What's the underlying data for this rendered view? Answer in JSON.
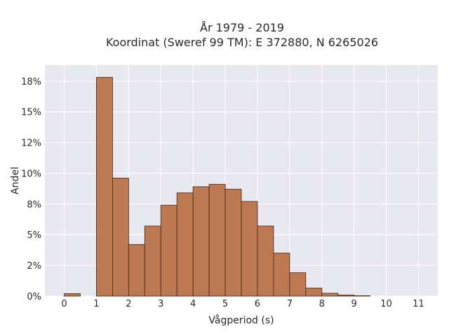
{
  "chart_data": {
    "type": "bar",
    "title": "År 1979 - 2019",
    "subtitle": "Koordinat (Sweref 99 TM): E 372880, N 6265026",
    "xlabel": "Vågperiod (s)",
    "ylabel": "Andel",
    "xlim": [
      -0.6,
      11.6
    ],
    "ylim": [
      0,
      0.188
    ],
    "x_ticks": [
      "0",
      "1",
      "2",
      "3",
      "4",
      "5",
      "6",
      "7",
      "8",
      "9",
      "10",
      "11"
    ],
    "y_ticks": [
      "0%",
      "2%",
      "5%",
      "8%",
      "10%",
      "12%",
      "15%",
      "18%"
    ],
    "y_tick_values": [
      0,
      0.025,
      0.05,
      0.075,
      0.1,
      0.125,
      0.15,
      0.175
    ],
    "bin_width": 0.5,
    "bins": [
      {
        "x0": 0.0,
        "value": 0.002
      },
      {
        "x0": 0.5,
        "value": 0.0
      },
      {
        "x0": 1.0,
        "value": 0.178
      },
      {
        "x0": 1.5,
        "value": 0.096
      },
      {
        "x0": 2.0,
        "value": 0.042
      },
      {
        "x0": 2.5,
        "value": 0.057
      },
      {
        "x0": 3.0,
        "value": 0.074
      },
      {
        "x0": 3.5,
        "value": 0.084
      },
      {
        "x0": 4.0,
        "value": 0.089
      },
      {
        "x0": 4.5,
        "value": 0.091
      },
      {
        "x0": 5.0,
        "value": 0.087
      },
      {
        "x0": 5.5,
        "value": 0.077
      },
      {
        "x0": 6.0,
        "value": 0.057
      },
      {
        "x0": 6.5,
        "value": 0.035
      },
      {
        "x0": 7.0,
        "value": 0.019
      },
      {
        "x0": 7.5,
        "value": 0.0065
      },
      {
        "x0": 8.0,
        "value": 0.0023
      },
      {
        "x0": 8.5,
        "value": 0.0009
      },
      {
        "x0": 9.0,
        "value": 0.0003
      }
    ],
    "grid": true,
    "bar_color": "#bd7a52",
    "bar_edge_color": "#3d2416",
    "plot_background": "#e8e8f0"
  }
}
